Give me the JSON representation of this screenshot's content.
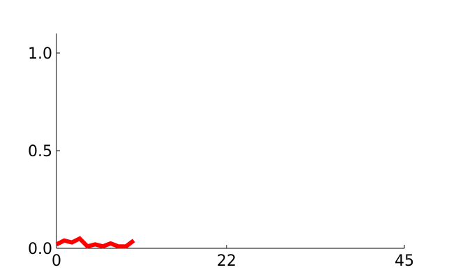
{
  "chart_data": {
    "type": "line",
    "title": "",
    "xlabel": "",
    "ylabel": "",
    "xlim": [
      0,
      45
    ],
    "ylim": [
      0,
      1.1
    ],
    "x_ticks": [
      0,
      22,
      45
    ],
    "y_ticks": [
      0.0,
      0.5,
      1.0
    ],
    "x_tick_labels": [
      "0",
      "22",
      "45"
    ],
    "y_tick_labels": [
      "0.0",
      "0.5",
      "1.0"
    ],
    "grid": false,
    "legend": "none",
    "series": [
      {
        "color": "#ff0000",
        "x": [
          0,
          1,
          2,
          3,
          4,
          5,
          6,
          7,
          8,
          9,
          10
        ],
        "y": [
          0.02,
          0.04,
          0.03,
          0.05,
          0.01,
          0.02,
          0.01,
          0.025,
          0.01,
          0.01,
          0.04
        ]
      }
    ]
  }
}
